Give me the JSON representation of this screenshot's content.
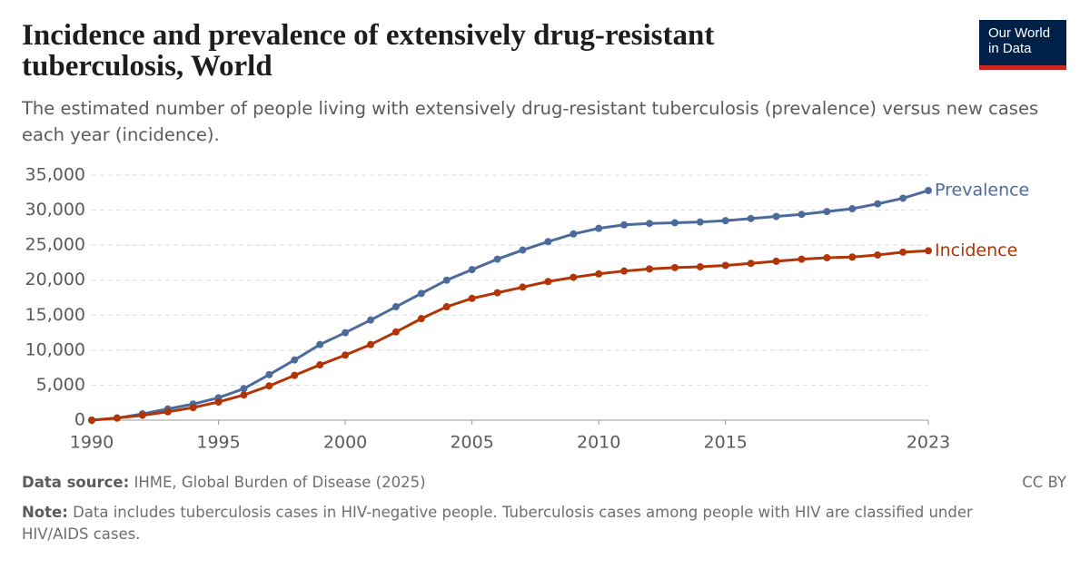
{
  "chart_data": {
    "type": "line",
    "title": "Incidence and prevalence of extensively drug-resistant tuberculosis, World",
    "subtitle": "The estimated number of people living with extensively drug-resistant tuberculosis (prevalence) versus new cases each year (incidence).",
    "logo": "Our World in Data",
    "source_label": "Data source:",
    "source": "IHME, Global Burden of Disease (2025)",
    "license": "CC BY",
    "note_label": "Note:",
    "note": "Data includes tuberculosis cases in HIV-negative people. Tuberculosis cases among people with HIV are classified under HIV/AIDS cases.",
    "x": [
      1990,
      1991,
      1992,
      1993,
      1994,
      1995,
      1996,
      1997,
      1998,
      1999,
      2000,
      2001,
      2002,
      2003,
      2004,
      2005,
      2006,
      2007,
      2008,
      2009,
      2010,
      2011,
      2012,
      2013,
      2014,
      2015,
      2016,
      2017,
      2018,
      2019,
      2020,
      2021,
      2022,
      2023
    ],
    "series": [
      {
        "name": "Prevalence",
        "color": "#4c6a9c",
        "values": [
          0,
          300,
          900,
          1600,
          2300,
          3200,
          4500,
          6500,
          8600,
          10800,
          12500,
          14300,
          16200,
          18100,
          20000,
          21500,
          23000,
          24300,
          25500,
          26600,
          27400,
          27900,
          28100,
          28200,
          28300,
          28500,
          28800,
          29100,
          29400,
          29800,
          30200,
          30900,
          31700,
          32800
        ]
      },
      {
        "name": "Incidence",
        "color": "#b13507",
        "values": [
          0,
          300,
          700,
          1200,
          1800,
          2600,
          3600,
          4900,
          6400,
          7900,
          9300,
          10800,
          12600,
          14500,
          16200,
          17400,
          18200,
          19000,
          19800,
          20400,
          20900,
          21300,
          21600,
          21800,
          21900,
          22100,
          22400,
          22700,
          23000,
          23200,
          23300,
          23600,
          24000,
          24200
        ]
      }
    ],
    "xlim": [
      1990,
      2023
    ],
    "xticks": [
      1990,
      1995,
      2000,
      2005,
      2010,
      2015,
      2023
    ],
    "ylim": [
      0,
      35000
    ],
    "yticks": [
      0,
      {
        "value": 5000,
        "label": "5,000"
      },
      {
        "value": 10000,
        "label": "10,000"
      },
      {
        "value": 15000,
        "label": "15,000"
      },
      {
        "value": 20000,
        "label": "20,000"
      },
      {
        "value": 25000,
        "label": "25,000"
      },
      {
        "value": 30000,
        "label": "30,000"
      },
      {
        "value": 35000,
        "label": "35,000"
      }
    ],
    "grid": true
  }
}
